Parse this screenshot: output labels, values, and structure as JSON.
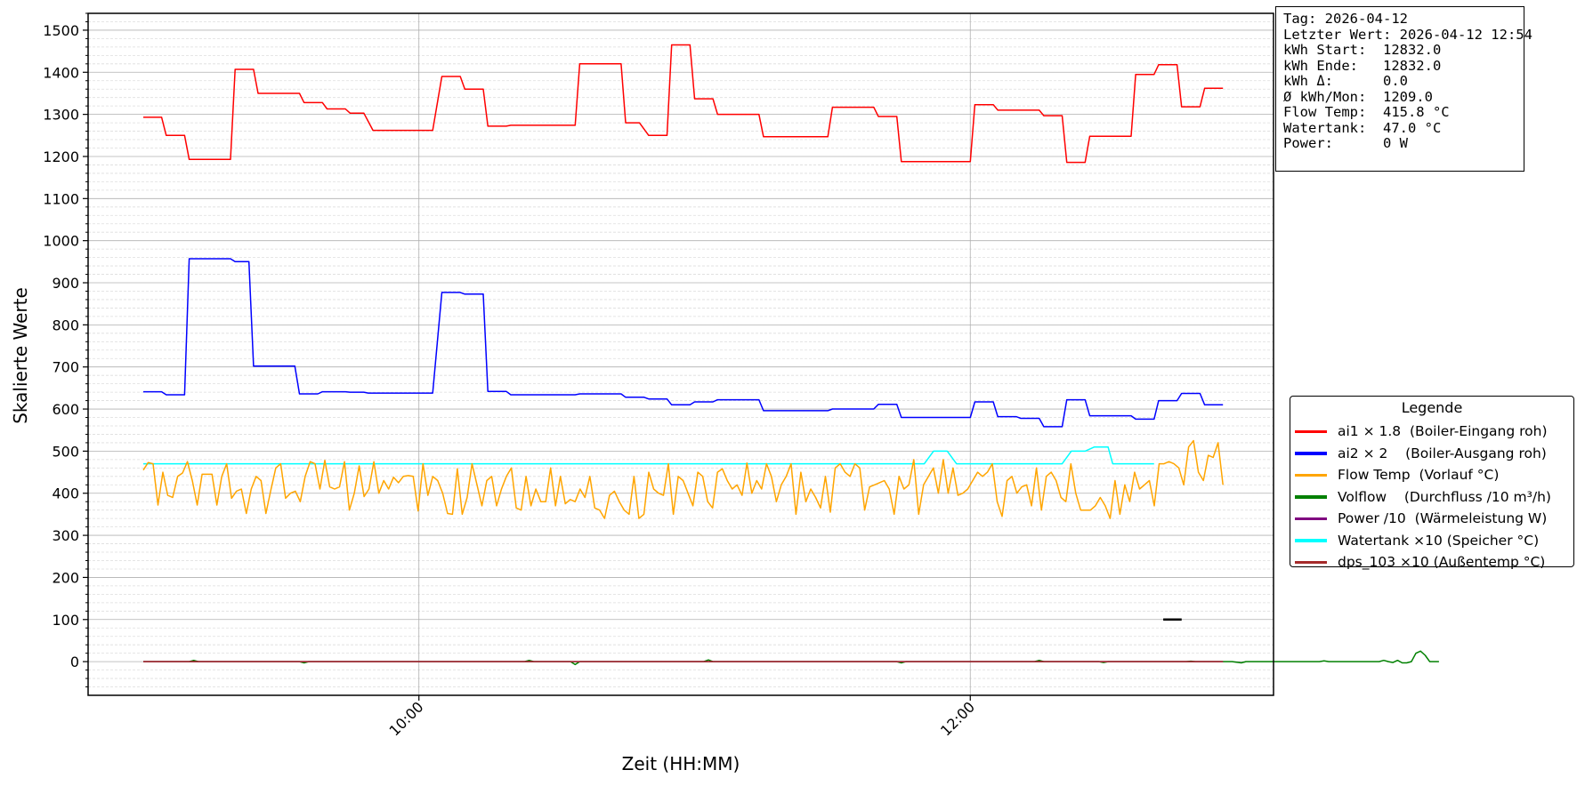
{
  "chart_data": {
    "type": "line",
    "xlabel": "Zeit (HH:MM)",
    "ylabel": "Skalierte Werte",
    "x_ticks": [
      "10:00",
      "12:00"
    ],
    "x_ticks_min": [
      600,
      720
    ],
    "xlim_min": [
      528,
      786
    ],
    "y_ticks": [
      0,
      100,
      200,
      300,
      400,
      500,
      600,
      700,
      800,
      900,
      1000,
      1100,
      1200,
      1300,
      1400,
      1500
    ],
    "ylim": [
      -80,
      1540
    ],
    "grid": true,
    "legend_title": "Legende",
    "legend_position": "center-right",
    "series": [
      {
        "name": "ai1 × 1.8  (Boiler-Eingang roh)",
        "color": "#ff0000",
        "step_points": [
          [
            540,
            1293
          ],
          [
            544,
            1293
          ],
          [
            545,
            1250
          ],
          [
            549,
            1250
          ],
          [
            550,
            1193
          ],
          [
            559,
            1193
          ],
          [
            560,
            1407
          ],
          [
            564,
            1407
          ],
          [
            565,
            1350
          ],
          [
            574,
            1350
          ],
          [
            575,
            1328
          ],
          [
            579,
            1328
          ],
          [
            580,
            1313
          ],
          [
            584,
            1313
          ],
          [
            585,
            1303
          ],
          [
            588,
            1303
          ],
          [
            590,
            1262
          ],
          [
            603,
            1262
          ],
          [
            605,
            1390
          ],
          [
            609,
            1390
          ],
          [
            610,
            1360
          ],
          [
            614,
            1360
          ],
          [
            615,
            1272
          ],
          [
            619,
            1272
          ],
          [
            620,
            1274
          ],
          [
            634,
            1274
          ],
          [
            635,
            1420
          ],
          [
            644,
            1420
          ],
          [
            645,
            1280
          ],
          [
            648,
            1280
          ],
          [
            650,
            1250
          ],
          [
            654,
            1250
          ],
          [
            655,
            1465
          ],
          [
            659,
            1465
          ],
          [
            660,
            1337
          ],
          [
            664,
            1337
          ],
          [
            665,
            1300
          ],
          [
            674,
            1300
          ],
          [
            675,
            1247
          ],
          [
            689,
            1247
          ],
          [
            690,
            1317
          ],
          [
            699,
            1317
          ],
          [
            700,
            1295
          ],
          [
            704,
            1295
          ],
          [
            705,
            1188
          ],
          [
            720,
            1188
          ],
          [
            721,
            1323
          ],
          [
            725,
            1323
          ],
          [
            726,
            1310
          ],
          [
            735,
            1310
          ],
          [
            736,
            1297
          ],
          [
            740,
            1297
          ],
          [
            741,
            1186
          ],
          [
            745,
            1186
          ],
          [
            746,
            1248
          ],
          [
            755,
            1248
          ],
          [
            756,
            1395
          ],
          [
            760,
            1395
          ],
          [
            761,
            1418
          ],
          [
            765,
            1418
          ],
          [
            766,
            1318
          ],
          [
            770,
            1318
          ],
          [
            771,
            1362
          ],
          [
            775,
            1362
          ]
        ]
      },
      {
        "name": "ai2 × 2    (Boiler-Ausgang roh)",
        "color": "#0000ff",
        "step_points": [
          [
            540,
            641
          ],
          [
            544,
            641
          ],
          [
            545,
            634
          ],
          [
            549,
            634
          ],
          [
            550,
            957
          ],
          [
            559,
            957
          ],
          [
            560,
            950
          ],
          [
            563,
            950
          ],
          [
            564,
            702
          ],
          [
            573,
            702
          ],
          [
            574,
            636
          ],
          [
            578,
            636
          ],
          [
            579,
            641
          ],
          [
            584,
            641
          ],
          [
            585,
            640
          ],
          [
            588,
            640
          ],
          [
            589,
            638
          ],
          [
            603,
            638
          ],
          [
            605,
            877
          ],
          [
            609,
            877
          ],
          [
            610,
            873
          ],
          [
            614,
            873
          ],
          [
            615,
            642
          ],
          [
            619,
            642
          ],
          [
            620,
            634
          ],
          [
            634,
            634
          ],
          [
            635,
            636
          ],
          [
            644,
            636
          ],
          [
            645,
            628
          ],
          [
            649,
            628
          ],
          [
            650,
            624
          ],
          [
            654,
            624
          ],
          [
            655,
            610
          ],
          [
            659,
            610
          ],
          [
            660,
            617
          ],
          [
            664,
            617
          ],
          [
            665,
            622
          ],
          [
            674,
            622
          ],
          [
            675,
            596
          ],
          [
            689,
            596
          ],
          [
            690,
            600
          ],
          [
            699,
            600
          ],
          [
            700,
            611
          ],
          [
            704,
            611
          ],
          [
            705,
            580
          ],
          [
            720,
            580
          ],
          [
            721,
            617
          ],
          [
            725,
            617
          ],
          [
            726,
            582
          ],
          [
            730,
            582
          ],
          [
            731,
            578
          ],
          [
            735,
            578
          ],
          [
            736,
            558
          ],
          [
            740,
            558
          ],
          [
            741,
            622
          ],
          [
            745,
            622
          ],
          [
            746,
            584
          ],
          [
            755,
            584
          ],
          [
            756,
            576
          ],
          [
            760,
            576
          ],
          [
            761,
            620
          ],
          [
            765,
            620
          ],
          [
            766,
            637
          ],
          [
            770,
            637
          ],
          [
            771,
            610
          ],
          [
            775,
            610
          ]
        ]
      },
      {
        "name": "Flow Temp  (Vorlauf °C)",
        "color": "#ffa500",
        "values": [
          455,
          473,
          470,
          372,
          450,
          395,
          390,
          440,
          448,
          475,
          430,
          372,
          445,
          445,
          445,
          372,
          440,
          470,
          388,
          405,
          410,
          352,
          410,
          440,
          430,
          352,
          407,
          460,
          470,
          388,
          400,
          405,
          380,
          440,
          475,
          470,
          410,
          478,
          415,
          410,
          415,
          475,
          360,
          400,
          465,
          392,
          410,
          475,
          400,
          430,
          410,
          438,
          425,
          440,
          442,
          440,
          358,
          470,
          395,
          440,
          430,
          400,
          352,
          350,
          458,
          350,
          390,
          470,
          420,
          370,
          430,
          440,
          370,
          410,
          440,
          460,
          365,
          360,
          440,
          370,
          410,
          380,
          380,
          460,
          370,
          440,
          375,
          385,
          380,
          410,
          390,
          440,
          365,
          360,
          340,
          395,
          405,
          380,
          360,
          350,
          440,
          340,
          350,
          450,
          410,
          400,
          395,
          470,
          350,
          440,
          430,
          400,
          370,
          450,
          440,
          380,
          365,
          450,
          458,
          430,
          410,
          420,
          395,
          472,
          400,
          430,
          410,
          470,
          440,
          380,
          420,
          440,
          470,
          350,
          450,
          380,
          410,
          390,
          365,
          440,
          355,
          460,
          470,
          450,
          440,
          470,
          460,
          360,
          415,
          420,
          425,
          430,
          410,
          350,
          440,
          410,
          420,
          480,
          350,
          420,
          440,
          460,
          400,
          480,
          400,
          460,
          395,
          400,
          410,
          430,
          450,
          440,
          450,
          470,
          380,
          345,
          430,
          440,
          400,
          415,
          420,
          370,
          460,
          360,
          440,
          450,
          430,
          390,
          380,
          470,
          400,
          360,
          360,
          360,
          370,
          390,
          370,
          340,
          430,
          350,
          420,
          380,
          450,
          410,
          420,
          430,
          370,
          470,
          470,
          475,
          470,
          460,
          420,
          510,
          525,
          450,
          430,
          490,
          485,
          520,
          420
        ]
      },
      {
        "name": "Volflow    (Durchfluss /10 m³/h)",
        "color": "#008000",
        "step_points": [
          [
            540,
            0
          ],
          [
            550,
            0
          ],
          [
            551,
            3
          ],
          [
            552,
            0
          ],
          [
            574,
            0
          ],
          [
            575,
            -3
          ],
          [
            576,
            0
          ],
          [
            623,
            0
          ],
          [
            624,
            3
          ],
          [
            625,
            0
          ],
          [
            633,
            0
          ],
          [
            634,
            -7
          ],
          [
            635,
            0
          ],
          [
            662,
            0
          ],
          [
            663,
            4
          ],
          [
            664,
            0
          ],
          [
            704,
            0
          ],
          [
            705,
            -3
          ],
          [
            706,
            0
          ],
          [
            734,
            0
          ],
          [
            735,
            3
          ],
          [
            736,
            0
          ],
          [
            748,
            0
          ],
          [
            749,
            -2
          ],
          [
            750,
            0
          ],
          [
            767,
            0
          ],
          [
            768,
            1
          ],
          [
            769,
            0
          ],
          [
            777,
            0
          ],
          [
            779,
            -3
          ],
          [
            780,
            0
          ],
          [
            796,
            0
          ],
          [
            797,
            2
          ],
          [
            798,
            0
          ],
          [
            809,
            0
          ],
          [
            810,
            3
          ],
          [
            811,
            0
          ],
          [
            812,
            -2
          ],
          [
            813,
            3
          ],
          [
            814,
            -3
          ],
          [
            815,
            -3
          ],
          [
            816,
            0
          ],
          [
            817,
            20
          ],
          [
            818,
            25
          ],
          [
            819,
            15
          ],
          [
            820,
            0
          ],
          [
            822,
            0
          ]
        ]
      },
      {
        "name": "Power /10  (Wärmeleistung W)",
        "color": "#800080",
        "values": [
          0
        ]
      },
      {
        "name": "Watertank ×10 (Speicher °C)",
        "color": "#00ffff",
        "step_points": [
          [
            540,
            470
          ],
          [
            710,
            470
          ],
          [
            712,
            500
          ],
          [
            715,
            500
          ],
          [
            717,
            470
          ],
          [
            740,
            470
          ],
          [
            742,
            500
          ],
          [
            745,
            500
          ],
          [
            747,
            510
          ],
          [
            750,
            510
          ],
          [
            751,
            470
          ],
          [
            760,
            470
          ]
        ]
      },
      {
        "name": "dps_103 ×10 (Außentemp °C)",
        "color": "#a52a2a",
        "values": [
          0
        ]
      }
    ],
    "annotations": [
      {
        "color": "#000000",
        "x_min": [
          762,
          766
        ],
        "y": 100
      }
    ]
  },
  "info": {
    "lines": [
      "Tag: 2026-04-12",
      "Letzter Wert: 2026-04-12 12:54",
      "kWh Start:  12832.0",
      "kWh Ende:   12832.0",
      "kWh Δ:      0.0",
      "Ø kWh/Mon:  1209.0",
      "Flow Temp:  415.8 °C",
      "Watertank:  47.0 °C",
      "Power:      0 W"
    ]
  }
}
